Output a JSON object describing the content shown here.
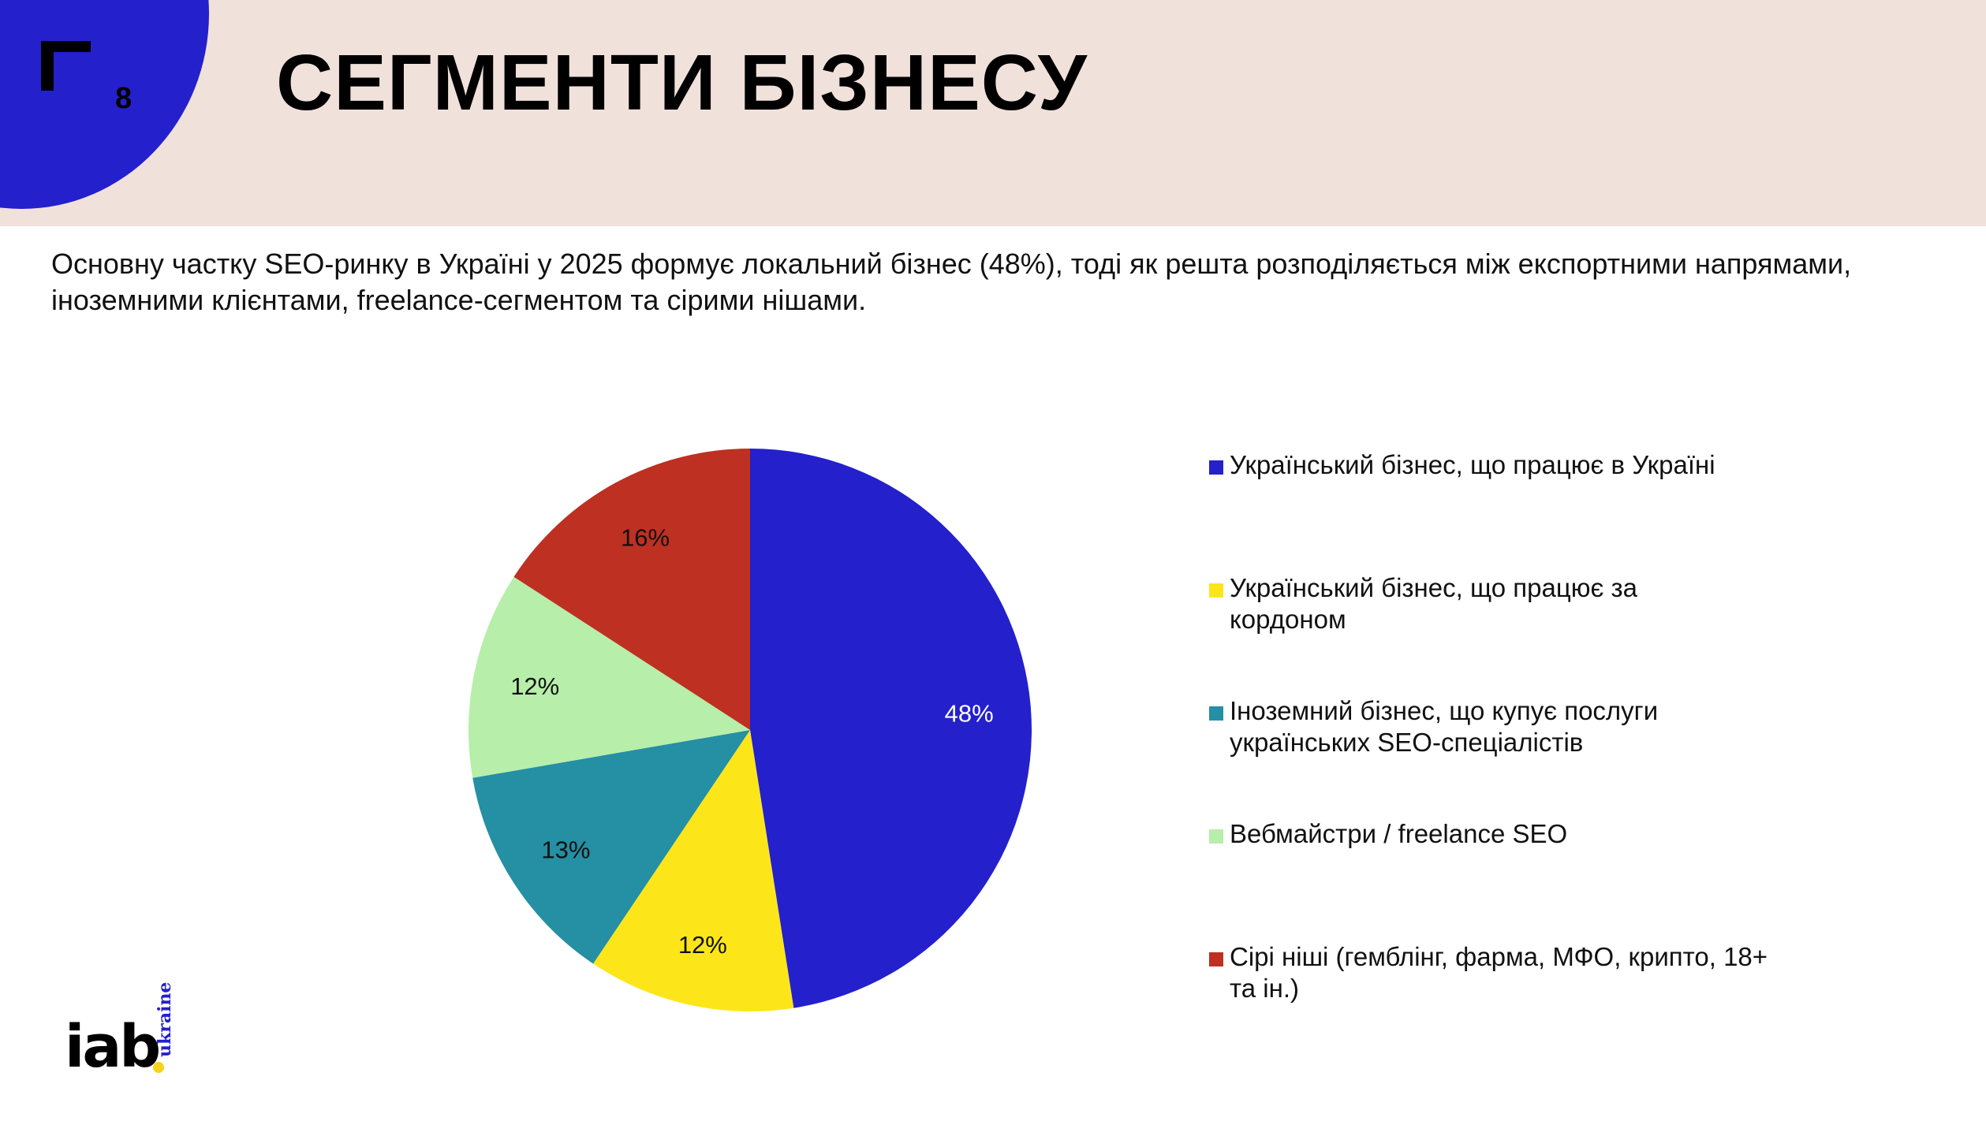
{
  "header": {
    "page_number": "8",
    "title": "СЕГМЕНТИ БІЗНЕСУ"
  },
  "intro": {
    "text": "Основну частку SEO-ринку в Україні у 2025 формує локальний бізнес (48%), тоді як решта розподіляється між експортними напрямами, іноземними клієнтами, freelance-сегментом та сірими нішами."
  },
  "chart_data": {
    "type": "pie",
    "categories": [
      "Український бізнес, що працює в Україні",
      "Український бізнес, що працює за кордоном",
      "Іноземний бізнес, що купує послуги українських SEO-спеціалістів",
      "Вебмайстри / freelance SEO",
      "Сірі ніші (гемблінг, фарма, МФО, крипто, 18+ та ін.)"
    ],
    "values": [
      48,
      12,
      13,
      12,
      16
    ],
    "data_labels": [
      "48%",
      "12%",
      "13%",
      "12%",
      "16%"
    ],
    "colors": [
      "#2420cc",
      "#fce61a",
      "#258fa3",
      "#b6eeaa",
      "#be3022"
    ],
    "label_colors": [
      "#ffffff",
      "#111111",
      "#111111",
      "#111111",
      "#111111"
    ],
    "start": "12 o'clock",
    "direction": "clockwise",
    "legend_position": "right"
  },
  "legend": {
    "items": [
      {
        "label": "Український бізнес, що працює в Україні",
        "color": "#2420cc"
      },
      {
        "label": "Український бізнес, що працює за кордоном",
        "color": "#fce61a"
      },
      {
        "label": "Іноземний бізнес, що купує послуги українських SEO-спеціалістів",
        "color": "#258fa3"
      },
      {
        "label": "Вебмайстри / freelance SEO",
        "color": "#b6eeaa"
      },
      {
        "label": "Сірі ніші (гемблінг, фарма, МФО, крипто, 18+ та ін.)",
        "color": "#be3022"
      }
    ]
  },
  "logo": {
    "word": "iab",
    "sub": "ukraine"
  }
}
